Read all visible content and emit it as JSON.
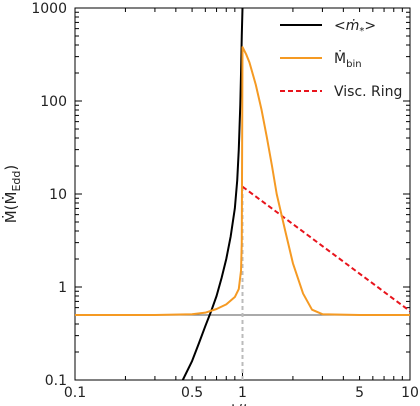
{
  "chart_data": {
    "type": "line",
    "xscale": "log",
    "yscale": "log",
    "xlim": [
      0.1,
      10
    ],
    "ylim": [
      0.1,
      1000
    ],
    "x_ticks": [
      {
        "value": 0.1,
        "label": "0.1"
      },
      {
        "value": 0.5,
        "label": "0.5"
      },
      {
        "value": 1,
        "label": "1"
      },
      {
        "value": 5,
        "label": "5"
      },
      {
        "value": 10,
        "label": "10"
      }
    ],
    "y_ticks": [
      {
        "value": 0.1,
        "label": "0.1"
      },
      {
        "value": 1,
        "label": "1"
      },
      {
        "value": 10,
        "label": "10"
      },
      {
        "value": 100,
        "label": "100"
      },
      {
        "value": 1000,
        "label": "1000"
      }
    ],
    "xlabel": {
      "main": "t/",
      "italic": "t",
      "sub": "c"
    },
    "ylabel": {
      "main": "Ṁ(Ṁ",
      "sub": "Edd",
      "close": ")"
    },
    "legend": {
      "position": "top-right",
      "entries": [
        {
          "label": "<ṁ",
          "label_sub": "*",
          "label_close": ">",
          "color": "#000000",
          "dash": "solid"
        },
        {
          "label": "Ṁ",
          "label_sub": "bin",
          "label_close": "",
          "color": "#f59a23",
          "dash": "solid"
        },
        {
          "label": "Visc. Ring",
          "label_sub": "",
          "label_close": "",
          "color": "#e8141c",
          "dash": "dashed"
        }
      ]
    },
    "series": [
      {
        "name": "<ṁ*>",
        "color": "#000000",
        "dash": "solid",
        "points": [
          [
            0.44,
            0.1
          ],
          [
            0.5,
            0.16
          ],
          [
            0.55,
            0.25
          ],
          [
            0.6,
            0.38
          ],
          [
            0.65,
            0.55
          ],
          [
            0.7,
            0.8
          ],
          [
            0.75,
            1.25
          ],
          [
            0.8,
            2.0
          ],
          [
            0.85,
            3.5
          ],
          [
            0.9,
            7.0
          ],
          [
            0.93,
            14
          ],
          [
            0.95,
            30
          ],
          [
            0.97,
            90
          ],
          [
            0.98,
            200
          ],
          [
            0.99,
            500
          ],
          [
            1.0,
            1000
          ]
        ]
      },
      {
        "name": "Ṁbin",
        "color": "#f59a23",
        "dash": "solid",
        "points": [
          [
            0.1,
            0.5
          ],
          [
            0.3,
            0.5
          ],
          [
            0.5,
            0.51
          ],
          [
            0.6,
            0.53
          ],
          [
            0.7,
            0.58
          ],
          [
            0.8,
            0.65
          ],
          [
            0.9,
            0.78
          ],
          [
            0.95,
            0.95
          ],
          [
            0.98,
            1.5
          ],
          [
            0.99,
            3.0
          ],
          [
            1.0,
            380
          ],
          [
            1.05,
            320
          ],
          [
            1.1,
            260
          ],
          [
            1.2,
            150
          ],
          [
            1.3,
            80
          ],
          [
            1.4,
            40
          ],
          [
            1.5,
            20
          ],
          [
            1.6,
            10
          ],
          [
            1.8,
            4.0
          ],
          [
            2.0,
            1.8
          ],
          [
            2.3,
            0.85
          ],
          [
            2.6,
            0.57
          ],
          [
            3.0,
            0.51
          ],
          [
            5.0,
            0.5
          ],
          [
            10.0,
            0.5
          ]
        ]
      },
      {
        "name": "Visc. Ring",
        "color": "#e8141c",
        "dash": "dashed",
        "points": [
          [
            1.0,
            12.0
          ],
          [
            10.0,
            0.55
          ]
        ]
      },
      {
        "name": "",
        "color": "#777777",
        "dash": "solid",
        "points": [
          [
            0.1,
            0.5
          ],
          [
            10.0,
            0.5
          ]
        ]
      },
      {
        "name": "",
        "color": "#bbbbbb",
        "dash": "dotted",
        "points": [
          [
            1.0,
            0.1
          ],
          [
            1.0,
            12.0
          ]
        ]
      }
    ]
  }
}
